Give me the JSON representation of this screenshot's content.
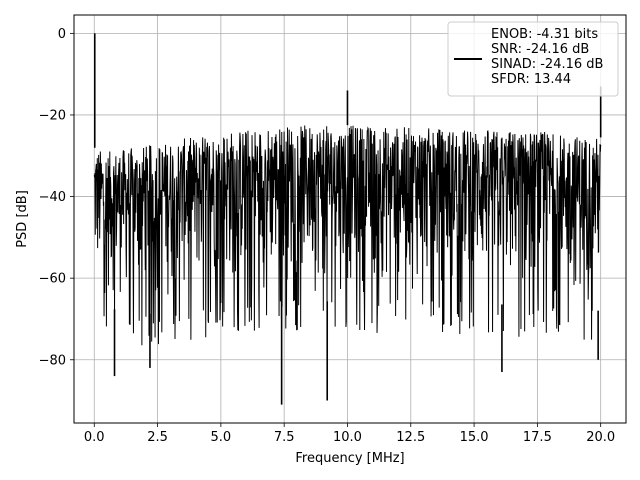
{
  "chart_data": {
    "type": "line",
    "title": "",
    "xlabel": "Frequency [MHz]",
    "ylabel": "PSD [dB]",
    "xlim": [
      -0.8,
      21.0
    ],
    "ylim": [
      -95.5,
      4.5
    ],
    "xticks": [
      0.0,
      2.5,
      5.0,
      7.5,
      10.0,
      12.5,
      15.0,
      17.5,
      20.0
    ],
    "xtick_labels": [
      "0.0",
      "2.5",
      "5.0",
      "7.5",
      "10.0",
      "12.5",
      "15.0",
      "17.5",
      "20.0"
    ],
    "yticks": [
      0,
      -20,
      -40,
      -60,
      -80
    ],
    "ytick_labels": [
      "0",
      "−20",
      "−40",
      "−60",
      "−80"
    ],
    "grid": true,
    "legend_position": "top-right",
    "legend_lines": [
      "ENOB: -4.31 bits",
      "SNR: -24.16 dB",
      "SINAD: -24.16 dB",
      "SFDR: 13.44"
    ],
    "series": [
      {
        "color": "#000000",
        "x_range": [
          0.0,
          20.0
        ],
        "upper_envelope": [
          {
            "x": 0.0,
            "y": -28
          },
          {
            "x": 0.5,
            "y": -29
          },
          {
            "x": 2.5,
            "y": -27
          },
          {
            "x": 5.0,
            "y": -24
          },
          {
            "x": 7.5,
            "y": -22.5
          },
          {
            "x": 10.0,
            "y": -22.5
          },
          {
            "x": 12.5,
            "y": -23
          },
          {
            "x": 15.0,
            "y": -23.5
          },
          {
            "x": 17.5,
            "y": -24
          },
          {
            "x": 20.0,
            "y": -25.5
          }
        ],
        "lower_envelope": [
          {
            "x": 0.0,
            "y": -67
          },
          {
            "x": 2.5,
            "y": -69
          },
          {
            "x": 5.0,
            "y": -66
          },
          {
            "x": 7.5,
            "y": -65
          },
          {
            "x": 10.0,
            "y": -66
          },
          {
            "x": 12.5,
            "y": -65
          },
          {
            "x": 15.0,
            "y": -66
          },
          {
            "x": 17.5,
            "y": -67
          },
          {
            "x": 20.0,
            "y": -68
          }
        ],
        "peaks": [
          {
            "x": 0.02,
            "y": 0.0
          },
          {
            "x": 10.0,
            "y": -14
          },
          {
            "x": 20.0,
            "y": -13
          }
        ],
        "dips": [
          {
            "x": 0.8,
            "y": -84
          },
          {
            "x": 2.2,
            "y": -82
          },
          {
            "x": 7.4,
            "y": -91
          },
          {
            "x": 9.2,
            "y": -90
          },
          {
            "x": 16.1,
            "y": -83
          },
          {
            "x": 19.9,
            "y": -80
          }
        ]
      }
    ]
  }
}
